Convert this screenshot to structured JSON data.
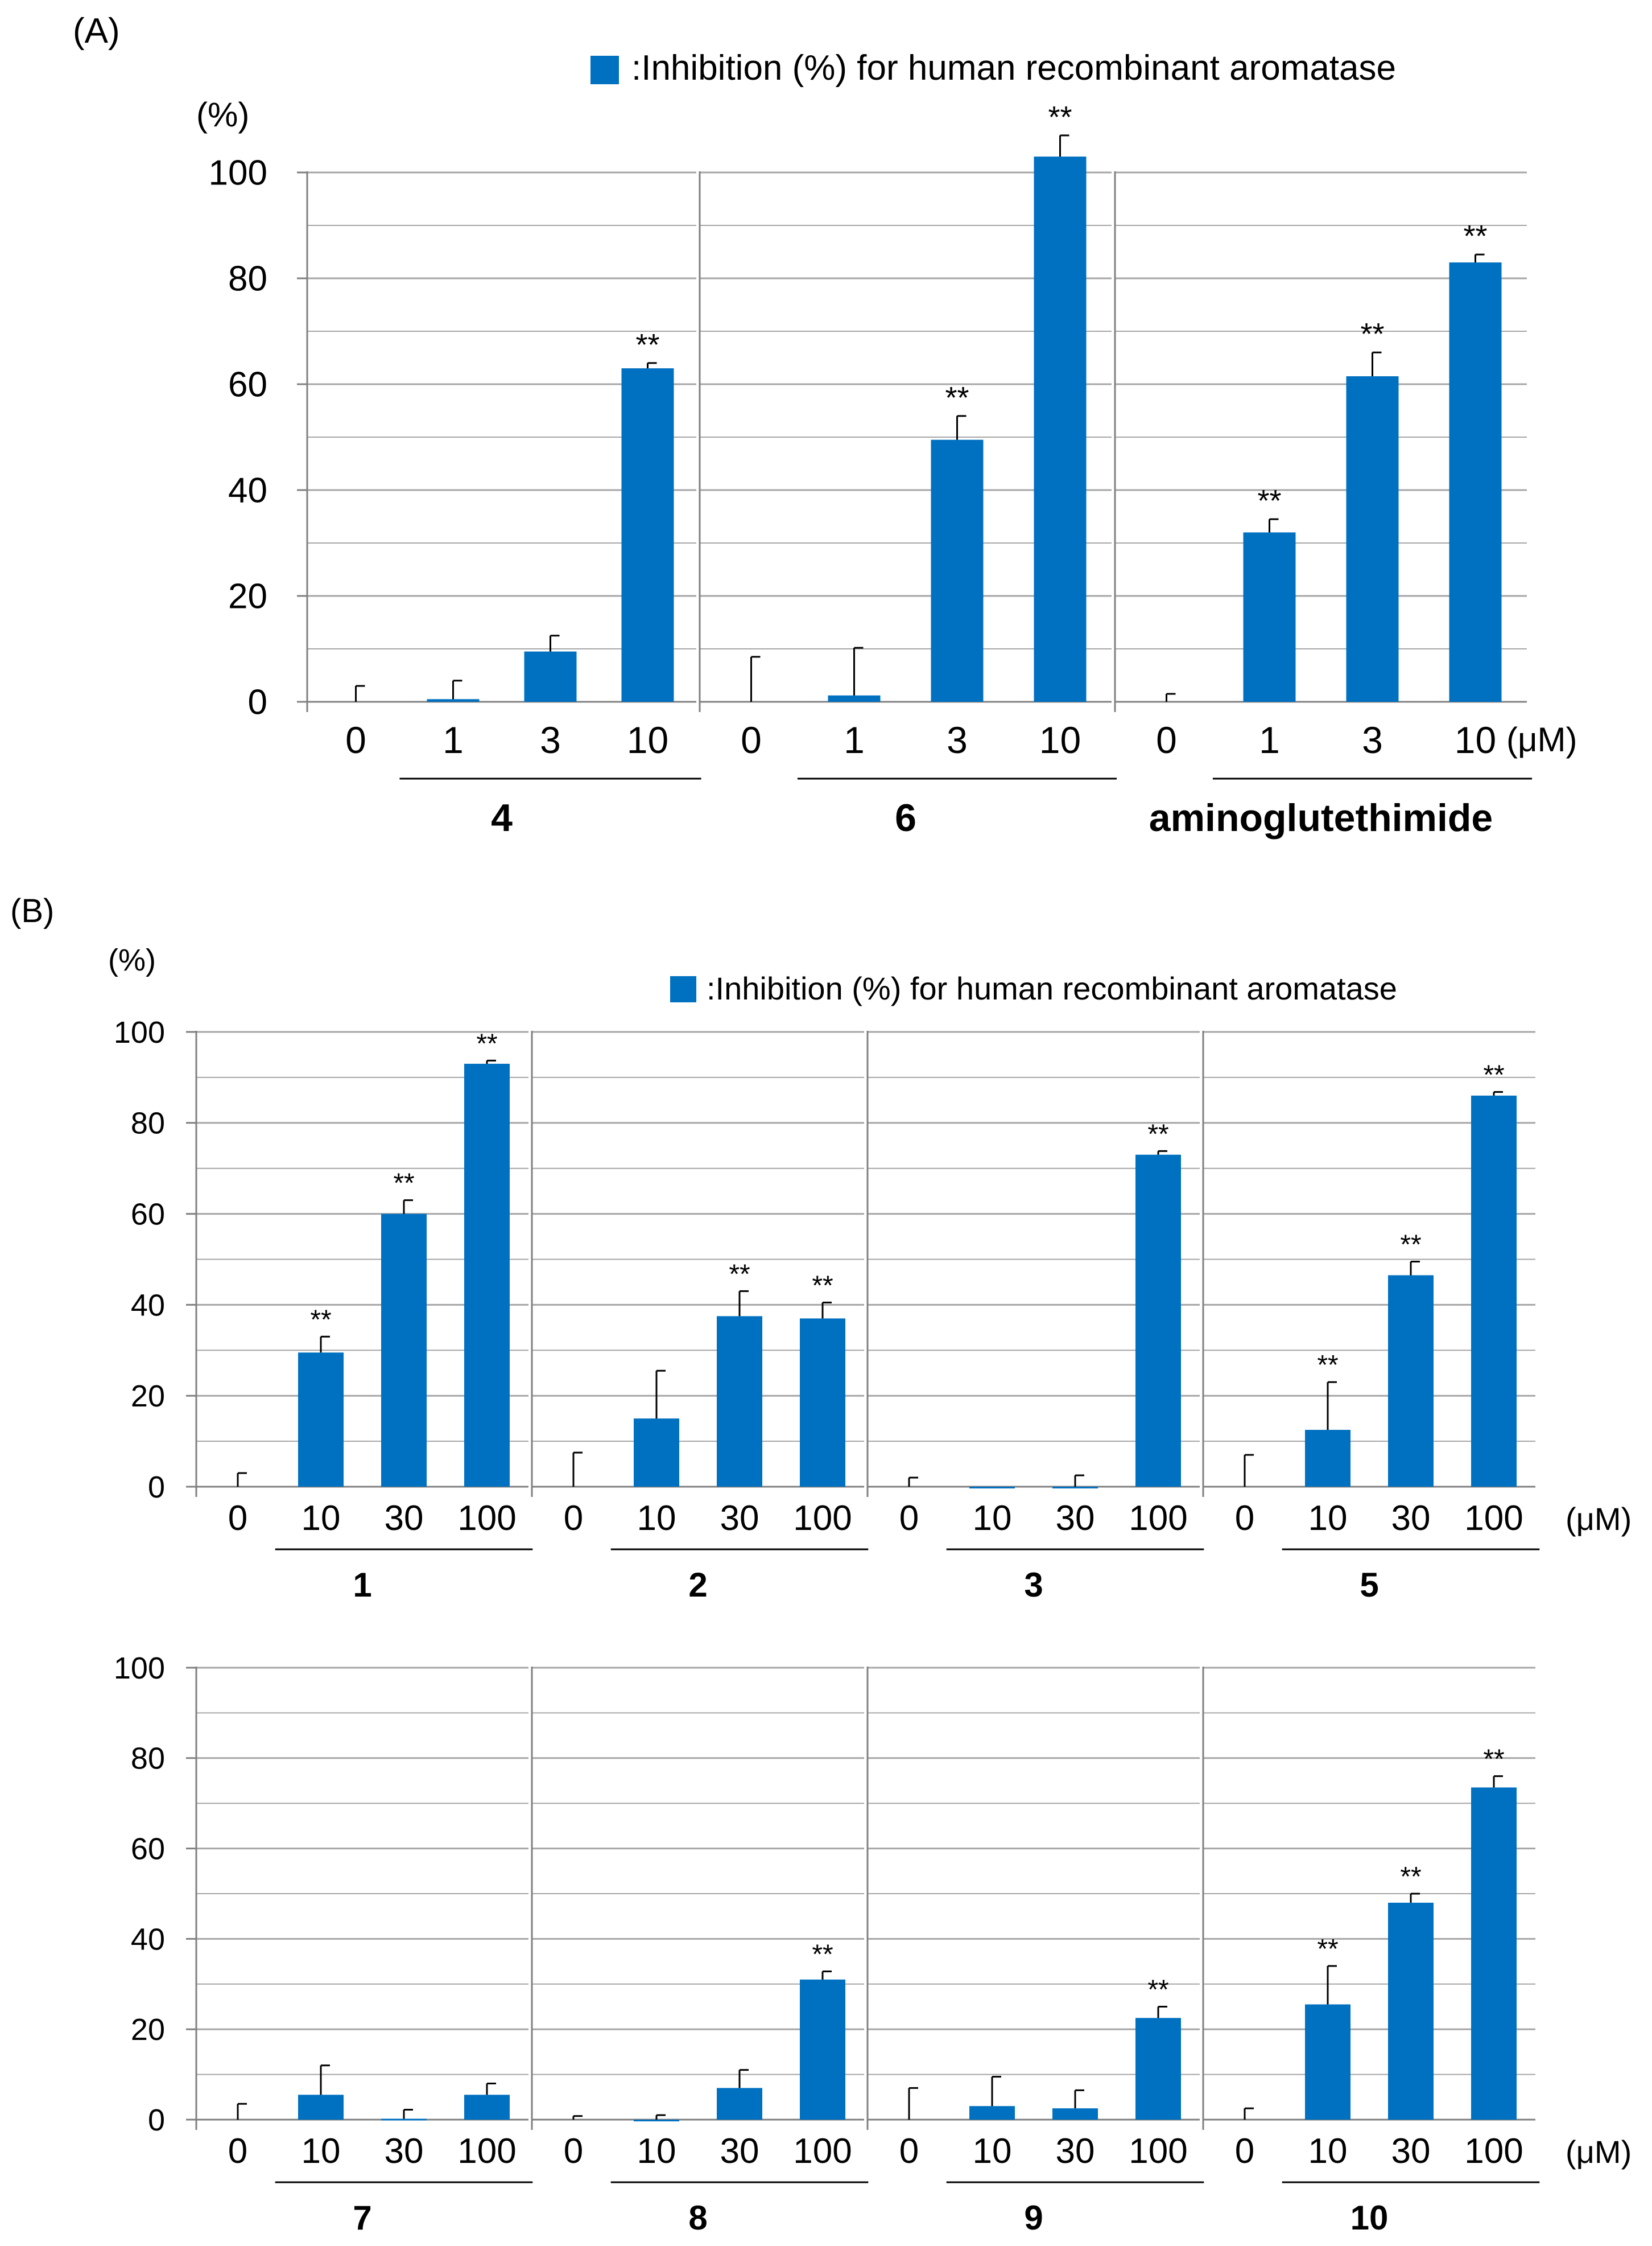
{
  "panels": {
    "A": {
      "label": "(A)",
      "unit_label": "(%)",
      "legend_label": ":Inhibition (%) for human  recombinant  aromatase",
      "conc_unit": "(μM)"
    },
    "B": {
      "label": "(B)",
      "unit_label": "(%)",
      "legend_label": ":Inhibition (%) for human recombinant aromatase",
      "conc_unit": "(μM)"
    }
  },
  "colors": {
    "bar": "#0070c0",
    "grid": "#a6a6a6",
    "axis": "#808080",
    "text": "#000000"
  },
  "chart_data": [
    {
      "type": "bar",
      "panel": "A",
      "ylabel": "(%)",
      "ylim": [
        0,
        100
      ],
      "yticks": [
        0,
        20,
        40,
        60,
        80,
        100
      ],
      "legend": ":Inhibition (%) for human  recombinant  aromatase",
      "x_unit": "(μM)",
      "groups": [
        {
          "compound": "4",
          "concentrations": [
            "0",
            "1",
            "3",
            "10"
          ],
          "values": [
            0,
            0.5,
            9.5,
            63
          ],
          "errors": [
            3,
            3.5,
            3,
            1
          ],
          "significance": [
            "",
            "",
            "",
            "**"
          ]
        },
        {
          "compound": "6",
          "concentrations": [
            "0",
            "1",
            "3",
            "10"
          ],
          "values": [
            0,
            1.2,
            49.5,
            103
          ],
          "errors": [
            8.5,
            9,
            4.5,
            4
          ],
          "significance": [
            "",
            "",
            "**",
            "**"
          ]
        },
        {
          "compound": "aminoglutethimide",
          "concentrations": [
            "0",
            "1",
            "3",
            "10"
          ],
          "values": [
            0,
            32,
            61.5,
            83
          ],
          "errors": [
            1.5,
            2.5,
            4.5,
            1.5
          ],
          "significance": [
            "",
            "**",
            "**",
            "**"
          ]
        }
      ]
    },
    {
      "type": "bar",
      "panel": "B",
      "ylabel": "(%)",
      "ylim": [
        0,
        100
      ],
      "yticks": [
        0,
        20,
        40,
        60,
        80,
        100
      ],
      "legend": ":Inhibition (%) for human recombinant aromatase",
      "x_unit": "(μM)",
      "groups": [
        {
          "compound": "1",
          "concentrations": [
            "0",
            "10",
            "30",
            "100"
          ],
          "values": [
            0,
            29.5,
            60,
            93
          ],
          "errors": [
            3,
            3.5,
            3,
            0.7
          ],
          "significance": [
            "",
            "**",
            "**",
            "**"
          ]
        },
        {
          "compound": "2",
          "concentrations": [
            "0",
            "10",
            "30",
            "100"
          ],
          "values": [
            0,
            15,
            37.5,
            37
          ],
          "errors": [
            7.5,
            10.5,
            5.5,
            3.5
          ],
          "significance": [
            "",
            "",
            "**",
            "**"
          ]
        },
        {
          "compound": "3",
          "concentrations": [
            "0",
            "10",
            "30",
            "100"
          ],
          "values": [
            0,
            -0.3,
            -0.2,
            73
          ],
          "errors": [
            2,
            0,
            2.5,
            0.8
          ],
          "significance": [
            "",
            "",
            "",
            "**"
          ]
        },
        {
          "compound": "5",
          "concentrations": [
            "0",
            "10",
            "30",
            "100"
          ],
          "values": [
            0,
            12.5,
            46.5,
            86
          ],
          "errors": [
            7,
            10.5,
            3,
            0.8
          ],
          "significance": [
            "",
            "**",
            "**",
            "**"
          ]
        }
      ]
    },
    {
      "type": "bar",
      "panel": "B",
      "ylabel": "",
      "ylim": [
        0,
        100
      ],
      "yticks": [
        0,
        20,
        40,
        60,
        80,
        100
      ],
      "x_unit": "(μM)",
      "groups": [
        {
          "compound": "7",
          "concentrations": [
            "0",
            "10",
            "30",
            "100"
          ],
          "values": [
            0,
            5.5,
            0.2,
            5.5
          ],
          "errors": [
            3.5,
            6.5,
            2,
            2.5
          ],
          "significance": [
            "",
            "",
            "",
            ""
          ]
        },
        {
          "compound": "8",
          "concentrations": [
            "0",
            "10",
            "30",
            "100"
          ],
          "values": [
            0,
            -0.3,
            7,
            31
          ],
          "errors": [
            0.8,
            1,
            4,
            1.8
          ],
          "significance": [
            "",
            "",
            "",
            "**"
          ]
        },
        {
          "compound": "9",
          "concentrations": [
            "0",
            "10",
            "30",
            "100"
          ],
          "values": [
            0,
            3,
            2.5,
            22.5
          ],
          "errors": [
            7,
            6.5,
            4,
            2.5
          ],
          "significance": [
            "",
            "",
            "",
            "**"
          ]
        },
        {
          "compound": "10",
          "concentrations": [
            "0",
            "10",
            "30",
            "100"
          ],
          "values": [
            0,
            25.5,
            48,
            73.5
          ],
          "errors": [
            2.5,
            8.5,
            2,
            2.5
          ],
          "significance": [
            "",
            "**",
            "**",
            "**"
          ]
        }
      ]
    }
  ]
}
